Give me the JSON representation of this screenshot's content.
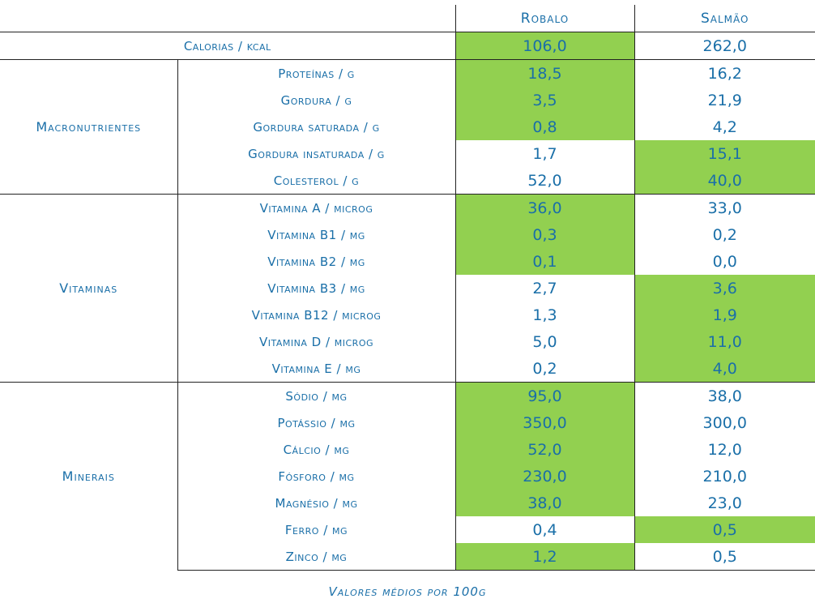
{
  "header": {
    "col_a": "Robalo",
    "col_b": "Salmão"
  },
  "calories": {
    "label": "Calorias / kcal",
    "a": "106,0",
    "b": "262,0",
    "best": "a"
  },
  "groups": [
    {
      "name": "Macronutrientes",
      "rows": [
        {
          "label": "Proteínas / g",
          "a": "18,5",
          "b": "16,2",
          "best": "a"
        },
        {
          "label": "Gordura / g",
          "a": "3,5",
          "b": "21,9",
          "best": "a"
        },
        {
          "label": "Gordura saturada / g",
          "a": "0,8",
          "b": "4,2",
          "best": "a"
        },
        {
          "label": "Gordura insaturada / g",
          "a": "1,7",
          "b": "15,1",
          "best": "b"
        },
        {
          "label": "Colesterol / g",
          "a": "52,0",
          "b": "40,0",
          "best": "b"
        }
      ]
    },
    {
      "name": "Vitaminas",
      "rows": [
        {
          "label": "Vitamina A / microg",
          "a": "36,0",
          "b": "33,0",
          "best": "a"
        },
        {
          "label": "Vitamina B1 / mg",
          "a": "0,3",
          "b": "0,2",
          "best": "a"
        },
        {
          "label": "Vitamina B2 / mg",
          "a": "0,1",
          "b": "0,0",
          "best": "a"
        },
        {
          "label": "Vitamina B3 / mg",
          "a": "2,7",
          "b": "3,6",
          "best": "b"
        },
        {
          "label": "Vitamina B12 / microg",
          "a": "1,3",
          "b": "1,9",
          "best": "b"
        },
        {
          "label": "Vitamina D / microg",
          "a": "5,0",
          "b": "11,0",
          "best": "b"
        },
        {
          "label": "Vitamina E / mg",
          "a": "0,2",
          "b": "4,0",
          "best": "b"
        }
      ]
    },
    {
      "name": "Minerais",
      "rows": [
        {
          "label": "Sódio / mg",
          "a": "95,0",
          "b": "38,0",
          "best": "a"
        },
        {
          "label": "Potássio / mg",
          "a": "350,0",
          "b": "300,0",
          "best": "a"
        },
        {
          "label": "Cálcio / mg",
          "a": "52,0",
          "b": "12,0",
          "best": "a"
        },
        {
          "label": "Fósforo / mg",
          "a": "230,0",
          "b": "210,0",
          "best": "a"
        },
        {
          "label": "Magnésio / mg",
          "a": "38,0",
          "b": "23,0",
          "best": "a"
        },
        {
          "label": "Ferro / mg",
          "a": "0,4",
          "b": "0,5",
          "best": "b"
        },
        {
          "label": "Zinco / mg",
          "a": "1,2",
          "b": "0,5",
          "best": "a"
        }
      ]
    }
  ],
  "caption": "Valores médios por 100g",
  "colors": {
    "text": "#1a6fa8",
    "highlight": "#92d050",
    "rule": "#222222"
  }
}
